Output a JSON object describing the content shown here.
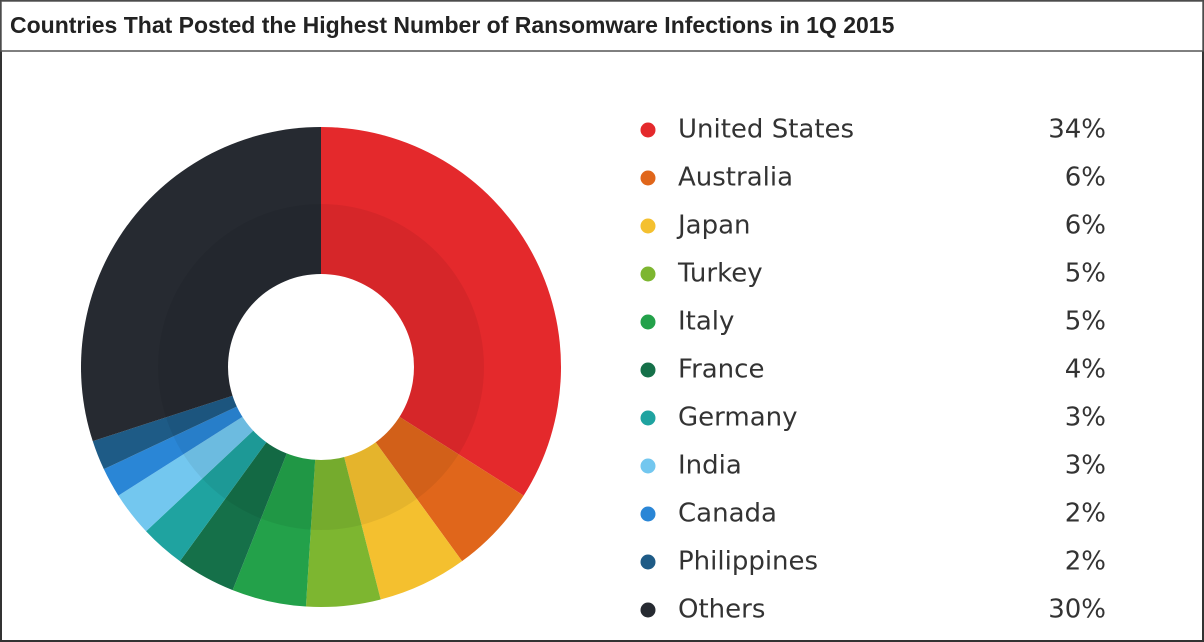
{
  "chart_data": {
    "type": "donut",
    "title": "Countries That Posted the Highest Number of Ransomware Infections in 1Q 2015",
    "categories": [
      "United States",
      "Australia",
      "Japan",
      "Turkey",
      "Italy",
      "France",
      "Germany",
      "India",
      "Canada",
      "Philippines",
      "Others"
    ],
    "values": [
      34,
      6,
      6,
      5,
      5,
      4,
      3,
      3,
      2,
      2,
      30
    ],
    "value_labels": [
      "34%",
      "6%",
      "6%",
      "5%",
      "5%",
      "4%",
      "3%",
      "3%",
      "2%",
      "2%",
      "30%"
    ],
    "colors": [
      "#e4292c",
      "#e0661b",
      "#f4c02f",
      "#7db630",
      "#23a14a",
      "#157049",
      "#1fa3a0",
      "#73c7ef",
      "#2a86d6",
      "#1e5b86",
      "#262a31"
    ]
  }
}
